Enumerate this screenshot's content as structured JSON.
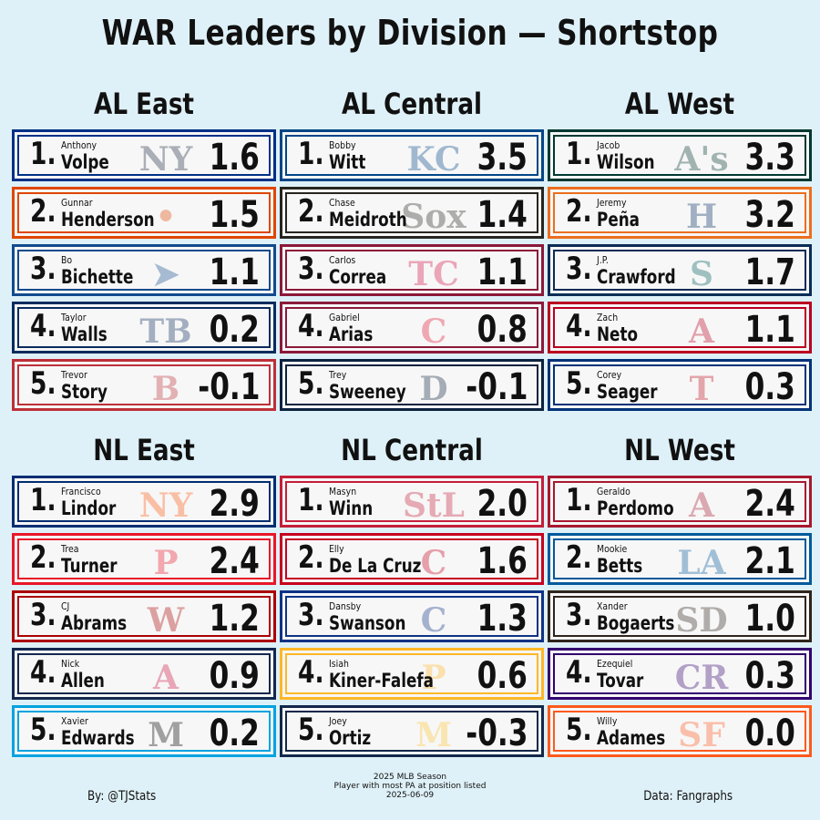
{
  "title": "WAR Leaders by Division — Shortstop",
  "divisions": [
    {
      "name": "AL East",
      "players": [
        {
          "rank": "1",
          "first": "Anthony",
          "last": "Volpe",
          "war": "1.6",
          "team_icon": "yankees-logo",
          "logo_text": "NY",
          "color": "#003087",
          "logo_color": "#1c2841"
        },
        {
          "rank": "2",
          "first": "Gunnar",
          "last": "Henderson",
          "war": "1.5",
          "team_icon": "orioles-logo",
          "logo_text": "•",
          "color": "#df4601",
          "logo_color": "#df4601"
        },
        {
          "rank": "3",
          "first": "Bo",
          "last": "Bichette",
          "war": "1.1",
          "team_icon": "blue-jays-logo",
          "logo_text": "➤",
          "color": "#134a8e",
          "logo_color": "#134a8e"
        },
        {
          "rank": "4",
          "first": "Taylor",
          "last": "Walls",
          "war": "0.2",
          "team_icon": "rays-logo",
          "logo_text": "TB",
          "color": "#092c5c",
          "logo_color": "#092c5c"
        },
        {
          "rank": "5",
          "first": "Trevor",
          "last": "Story",
          "war": "-0.1",
          "team_icon": "red-sox-logo",
          "logo_text": "B",
          "color": "#bd3039",
          "logo_color": "#bd3039"
        }
      ]
    },
    {
      "name": "AL Central",
      "players": [
        {
          "rank": "1",
          "first": "Bobby",
          "last": "Witt",
          "war": "3.5",
          "team_icon": "royals-logo",
          "logo_text": "KC",
          "color": "#004687",
          "logo_color": "#004687"
        },
        {
          "rank": "2",
          "first": "Chase",
          "last": "Meidroth",
          "war": "1.4",
          "team_icon": "white-sox-logo",
          "logo_text": "Sox",
          "color": "#27251f",
          "logo_color": "#27251f"
        },
        {
          "rank": "3",
          "first": "Carlos",
          "last": "Correa",
          "war": "1.1",
          "team_icon": "twins-logo",
          "logo_text": "TC",
          "color": "#8b1a3a",
          "logo_color": "#d31145"
        },
        {
          "rank": "4",
          "first": "Gabriel",
          "last": "Arias",
          "war": "0.8",
          "team_icon": "guardians-logo",
          "logo_text": "C",
          "color": "#8b1a3a",
          "logo_color": "#e31937"
        },
        {
          "rank": "5",
          "first": "Trey",
          "last": "Sweeney",
          "war": "-0.1",
          "team_icon": "tigers-logo",
          "logo_text": "D",
          "color": "#0c2340",
          "logo_color": "#0c2340"
        }
      ]
    },
    {
      "name": "AL West",
      "players": [
        {
          "rank": "1",
          "first": "Jacob",
          "last": "Wilson",
          "war": "3.3",
          "team_icon": "athletics-logo",
          "logo_text": "A's",
          "color": "#003831",
          "logo_color": "#003831"
        },
        {
          "rank": "2",
          "first": "Jeremy",
          "last": "Peña",
          "war": "3.2",
          "team_icon": "astros-logo",
          "logo_text": "H",
          "color": "#eb6e1f",
          "logo_color": "#002d62"
        },
        {
          "rank": "3",
          "first": "J.P.",
          "last": "Crawford",
          "war": "1.7",
          "team_icon": "mariners-logo",
          "logo_text": "S",
          "color": "#0c2c56",
          "logo_color": "#005c5c"
        },
        {
          "rank": "4",
          "first": "Zach",
          "last": "Neto",
          "war": "1.1",
          "team_icon": "angels-logo",
          "logo_text": "A",
          "color": "#ba0021",
          "logo_color": "#ba0021"
        },
        {
          "rank": "5",
          "first": "Corey",
          "last": "Seager",
          "war": "0.3",
          "team_icon": "rangers-logo",
          "logo_text": "T",
          "color": "#003278",
          "logo_color": "#c0111f"
        }
      ]
    },
    {
      "name": "NL East",
      "players": [
        {
          "rank": "1",
          "first": "Francisco",
          "last": "Lindor",
          "war": "2.9",
          "team_icon": "mets-logo",
          "logo_text": "NY",
          "color": "#002d72",
          "logo_color": "#ff5910"
        },
        {
          "rank": "2",
          "first": "Trea",
          "last": "Turner",
          "war": "2.4",
          "team_icon": "phillies-logo",
          "logo_text": "P",
          "color": "#e81828",
          "logo_color": "#e81828"
        },
        {
          "rank": "3",
          "first": "CJ",
          "last": "Abrams",
          "war": "1.2",
          "team_icon": "nationals-logo",
          "logo_text": "W",
          "color": "#ab0003",
          "logo_color": "#ab0003"
        },
        {
          "rank": "4",
          "first": "Nick",
          "last": "Allen",
          "war": "0.9",
          "team_icon": "braves-logo",
          "logo_text": "A",
          "color": "#13274f",
          "logo_color": "#ce1141"
        },
        {
          "rank": "5",
          "first": "Xavier",
          "last": "Edwards",
          "war": "0.2",
          "team_icon": "marlins-logo",
          "logo_text": "M",
          "color": "#00a3e0",
          "logo_color": "#000000"
        }
      ]
    },
    {
      "name": "NL Central",
      "players": [
        {
          "rank": "1",
          "first": "Masyn",
          "last": "Winn",
          "war": "2.0",
          "team_icon": "cardinals-logo",
          "logo_text": "StL",
          "color": "#c41e3a",
          "logo_color": "#c41e3a"
        },
        {
          "rank": "2",
          "first": "Elly",
          "last": "De La Cruz",
          "war": "1.6",
          "team_icon": "reds-logo",
          "logo_text": "C",
          "color": "#c6011f",
          "logo_color": "#c6011f"
        },
        {
          "rank": "3",
          "first": "Dansby",
          "last": "Swanson",
          "war": "1.3",
          "team_icon": "cubs-logo",
          "logo_text": "C",
          "color": "#0e3386",
          "logo_color": "#0e3386"
        },
        {
          "rank": "4",
          "first": "Isiah",
          "last": "Kiner-Falefa",
          "war": "0.6",
          "team_icon": "pirates-logo",
          "logo_text": "P",
          "color": "#fdb827",
          "logo_color": "#fdb827"
        },
        {
          "rank": "5",
          "first": "Joey",
          "last": "Ortiz",
          "war": "-0.3",
          "team_icon": "brewers-logo",
          "logo_text": "M",
          "color": "#12284b",
          "logo_color": "#ffc52f"
        }
      ]
    },
    {
      "name": "NL West",
      "players": [
        {
          "rank": "1",
          "first": "Geraldo",
          "last": "Perdomo",
          "war": "2.4",
          "team_icon": "diamondbacks-logo",
          "logo_text": "A",
          "color": "#a71930",
          "logo_color": "#a71930"
        },
        {
          "rank": "2",
          "first": "Mookie",
          "last": "Betts",
          "war": "2.1",
          "team_icon": "dodgers-logo",
          "logo_text": "LA",
          "color": "#005a9c",
          "logo_color": "#005a9c"
        },
        {
          "rank": "3",
          "first": "Xander",
          "last": "Bogaerts",
          "war": "1.0",
          "team_icon": "padres-logo",
          "logo_text": "SD",
          "color": "#2f241d",
          "logo_color": "#2f241d"
        },
        {
          "rank": "4",
          "first": "Ezequiel",
          "last": "Tovar",
          "war": "0.3",
          "team_icon": "rockies-logo",
          "logo_text": "CR",
          "color": "#33006f",
          "logo_color": "#33006f"
        },
        {
          "rank": "5",
          "first": "Willy",
          "last": "Adames",
          "war": "0.0",
          "team_icon": "giants-logo",
          "logo_text": "SF",
          "color": "#fd5a1e",
          "logo_color": "#fd5a1e"
        }
      ]
    }
  ],
  "footer": {
    "left": "By: @TJStats",
    "center_lines": [
      "2025 MLB Season",
      "Player with most PA at position listed",
      "2025-06-09"
    ],
    "right": "Data: Fangraphs"
  }
}
